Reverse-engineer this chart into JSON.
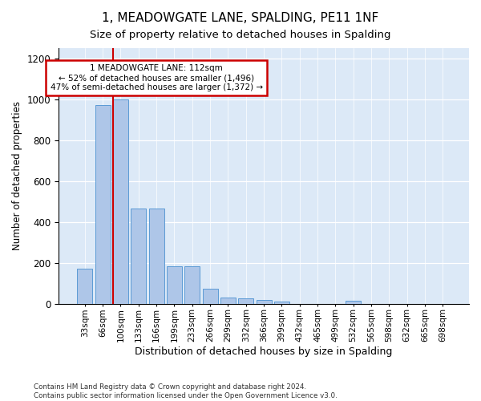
{
  "title": "1, MEADOWGATE LANE, SPALDING, PE11 1NF",
  "subtitle": "Size of property relative to detached houses in Spalding",
  "xlabel": "Distribution of detached houses by size in Spalding",
  "ylabel": "Number of detached properties",
  "bar_labels": [
    "33sqm",
    "66sqm",
    "100sqm",
    "133sqm",
    "166sqm",
    "199sqm",
    "233sqm",
    "266sqm",
    "299sqm",
    "332sqm",
    "366sqm",
    "399sqm",
    "432sqm",
    "465sqm",
    "499sqm",
    "532sqm",
    "565sqm",
    "598sqm",
    "632sqm",
    "665sqm",
    "698sqm"
  ],
  "bar_values": [
    170,
    970,
    1000,
    465,
    465,
    185,
    185,
    75,
    30,
    25,
    20,
    10,
    0,
    0,
    0,
    13,
    0,
    0,
    0,
    0,
    0
  ],
  "bar_color": "#aec6e8",
  "bar_edge_color": "#5b9bd5",
  "red_line_color": "#cc0000",
  "red_line_index": 2,
  "annotation_text": "1 MEADOWGATE LANE: 112sqm\n← 52% of detached houses are smaller (1,496)\n47% of semi-detached houses are larger (1,372) →",
  "annotation_box_facecolor": "#ffffff",
  "annotation_box_edgecolor": "#cc0000",
  "ylim": [
    0,
    1250
  ],
  "yticks": [
    0,
    200,
    400,
    600,
    800,
    1000,
    1200
  ],
  "background_color": "#dce9f7",
  "grid_color": "#ffffff",
  "title_fontsize": 11,
  "subtitle_fontsize": 9.5,
  "footer": "Contains HM Land Registry data © Crown copyright and database right 2024.\nContains public sector information licensed under the Open Government Licence v3.0."
}
